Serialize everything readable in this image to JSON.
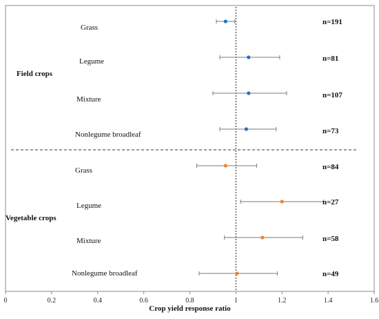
{
  "chart_data": {
    "type": "scatter",
    "title": "",
    "xlabel": "Crop yield response ratio",
    "ylabel": "",
    "xlim": [
      0,
      1.6
    ],
    "xticks": [
      "0",
      "0.2",
      "0.4",
      "0.6",
      "0.8",
      "1",
      "1.2",
      "1.4",
      "1.6"
    ],
    "reference_line": 1,
    "grid": false,
    "groups": [
      {
        "label": "Field crops",
        "color": "#1f73c8",
        "rows": [
          {
            "label": "Grass",
            "value": 0.955,
            "ci": [
              0.915,
              0.995
            ],
            "n": "n=191"
          },
          {
            "label": "Legume",
            "value": 1.055,
            "ci": [
              0.93,
              1.19
            ],
            "n": "n=81"
          },
          {
            "label": "Mixture",
            "value": 1.055,
            "ci": [
              0.9,
              1.22
            ],
            "n": "n=107"
          },
          {
            "label": "Nonlegume broadleaf",
            "value": 1.045,
            "ci": [
              0.93,
              1.175
            ],
            "n": "n=73"
          }
        ]
      },
      {
        "label": "Vegetable crops",
        "color": "#f0822a",
        "rows": [
          {
            "label": "Grass",
            "value": 0.955,
            "ci": [
              0.83,
              1.09
            ],
            "n": "n=84"
          },
          {
            "label": "Legume",
            "value": 1.2,
            "ci": [
              1.02,
              1.38
            ],
            "n": "n=27"
          },
          {
            "label": "Mixture",
            "value": 1.115,
            "ci": [
              0.95,
              1.29
            ],
            "n": "n=58"
          },
          {
            "label": "Nonlegume broadleaf",
            "value": 1.005,
            "ci": [
              0.84,
              1.18
            ],
            "n": "n=49"
          }
        ]
      }
    ]
  }
}
